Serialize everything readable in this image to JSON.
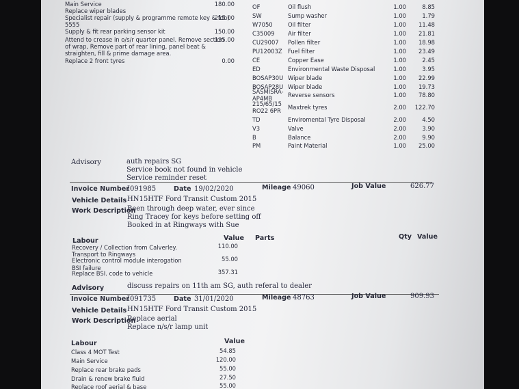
{
  "top_labour": [
    {
      "lines": [
        "Main Service"
      ],
      "value": "180.00"
    },
    {
      "lines": [
        "Replace wiper blades"
      ]
    },
    {
      "lines": [
        "Specialist repair  (supply & programme remote key & fob)"
      ],
      "value": "215.00"
    },
    {
      "lines": [
        "5555"
      ]
    },
    {
      "lines": [
        "Supply & fit rear parking sensor kit"
      ],
      "value": "150.00"
    },
    {
      "lines": [
        "Attend to crease in o/s/r quarter panel. Remove section",
        "of wrap, Remove part of rear lining, panel beat &",
        "straighten, fill & prime damage area."
      ],
      "value": "135.00"
    },
    {
      "lines": [
        "Replace 2 front tyres"
      ],
      "value": "0.00"
    }
  ],
  "top_parts": [
    {
      "code": [
        "OF"
      ],
      "description": "Oil flush",
      "qty": "1.00",
      "value": "8.85"
    },
    {
      "code": [
        "SW"
      ],
      "description": "Sump washer",
      "qty": "1.00",
      "value": "1.79"
    },
    {
      "code": [
        "W7050"
      ],
      "description": "Oil filter",
      "qty": "1.00",
      "value": "11.48"
    },
    {
      "code": [
        "C35009"
      ],
      "description": "Air filter",
      "qty": "1.00",
      "value": "21.81"
    },
    {
      "code": [
        "CU29007"
      ],
      "description": "Pollen filter",
      "qty": "1.00",
      "value": "18.98"
    },
    {
      "code": [
        "PU12003Z"
      ],
      "description": "Fuel filter",
      "qty": "1.00",
      "value": "23.49"
    },
    {
      "code": [
        "CE"
      ],
      "description": "Copper Ease",
      "qty": "1.00",
      "value": "2.45"
    },
    {
      "code": [
        "ED"
      ],
      "description": "Environmental Waste Disposal",
      "qty": "1.00",
      "value": "3.95"
    },
    {
      "code": [
        "BOSAP30U"
      ],
      "description": "Wiper blade",
      "qty": "1.00",
      "value": "22.99"
    },
    {
      "code": [
        "BOSAP28U"
      ],
      "description": "Wiper blade",
      "qty": "1.00",
      "value": "19.73"
    },
    {
      "code": [
        "SASMISRA-",
        "AP4MB"
      ],
      "description": "Reverse sensors",
      "qty": "1.00",
      "value": "78.80"
    },
    {
      "code": [
        "215/65/15",
        "RO22 6PR"
      ],
      "description": "Maxtrek tyres",
      "qty": "2.00",
      "value": "122.70"
    },
    {
      "code": [
        "TD"
      ],
      "description": "Enviromental Tyre Disposal",
      "qty": "2.00",
      "value": "4.50"
    },
    {
      "code": [
        "V3"
      ],
      "description": "Valve",
      "qty": "2.00",
      "value": "3.90"
    },
    {
      "code": [
        "B"
      ],
      "description": "Balance",
      "qty": "2.00",
      "value": "9.90"
    },
    {
      "code": [
        "PM"
      ],
      "description": "Paint Material",
      "qty": "1.00",
      "value": "25.00"
    }
  ],
  "advisory_1": {
    "label": "Advisory",
    "lines": [
      "auth repairs SG",
      "Service book not found in vehicle",
      "Service reminder reset"
    ]
  },
  "invoice_1": {
    "invoice_label": "Invoice Number",
    "invoice_number": "I091985",
    "date_label": "Date",
    "date": "19/02/2020",
    "mileage_label": "Mileage",
    "mileage": "49060",
    "job_value_label": "Job Value",
    "job_value": "626.77",
    "vehicle_label": "Vehicle Details",
    "vehicle": "HN15HTF Ford Transit Custom 2015",
    "work_label": "Work Description",
    "work_lines": [
      "Been through deep water, ever since",
      "Ring Tracey for keys before setting off",
      "Booked in at Ringways with Sue"
    ],
    "headers": {
      "labour": "Labour",
      "value": "Value",
      "parts": "Parts",
      "qty": "Qty",
      "parts_value": "Value"
    },
    "labour": [
      {
        "text": "Recovery / Collection from Calverley.",
        "value": "110.00"
      },
      {
        "text": "Transport to Ringways"
      },
      {
        "text": "Electronic control module interogation",
        "value": "55.00"
      },
      {
        "text": "BSI failure"
      },
      {
        "text": "Replace BSI. code to vehicle",
        "value": "357.31"
      }
    ],
    "advisory_label": "Advisory",
    "advisory": "discuss repairs on 11th am SG, auth referal to dealer"
  },
  "invoice_2": {
    "invoice_label": "Invoice Number",
    "invoice_number": "I091735",
    "date_label": "Date",
    "date": "31/01/2020",
    "mileage_label": "Mileage",
    "mileage": "48763",
    "job_value_label": "Job Value",
    "job_value": "909.93",
    "vehicle_label": "Vehicle Details",
    "vehicle": "HN15HTF Ford Transit Custom 2015",
    "work_label": "Work Description",
    "work_lines": [
      "Replace aerial",
      "Replace n/s/r lamp unit"
    ],
    "headers": {
      "labour": "Labour",
      "value": "Value"
    },
    "labour": [
      {
        "text": "Class 4 MOT Test",
        "value": "54.85"
      },
      {
        "text": "Main Service",
        "value": "120.00"
      },
      {
        "text": "Replace rear brake pads",
        "value": "55.00"
      },
      {
        "text": "Drain & renew brake fluid",
        "value": "27.50"
      },
      {
        "text": "Replace roof aerial & base",
        "value": "55.00"
      }
    ]
  }
}
